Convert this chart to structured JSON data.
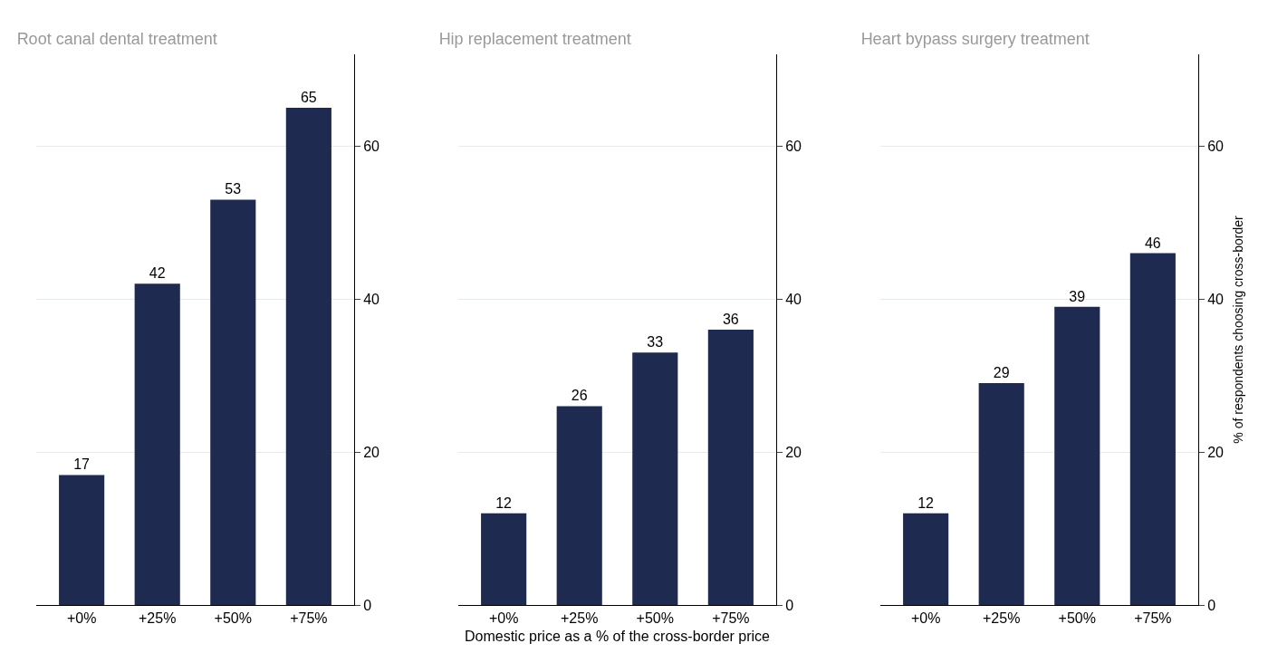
{
  "chart_data": [
    {
      "type": "bar",
      "title": "Root canal dental treatment",
      "categories": [
        "+0%",
        "+25%",
        "+50%",
        "+75%"
      ],
      "values": [
        17,
        42,
        53,
        65
      ],
      "color": "#1f2a50",
      "ylim": [
        0,
        72
      ],
      "yticks": [
        0,
        20,
        40,
        60
      ],
      "grid": "y",
      "data_labels": true
    },
    {
      "type": "bar",
      "title": "Hip replacement treatment",
      "xlabel": "Domestic price as a % of the cross-border price",
      "categories": [
        "+0%",
        "+25%",
        "+50%",
        "+75%"
      ],
      "values": [
        12,
        26,
        33,
        36
      ],
      "color": "#1f2a50",
      "ylim": [
        0,
        72
      ],
      "yticks": [
        0,
        20,
        40,
        60
      ],
      "grid": "y",
      "data_labels": true
    },
    {
      "type": "bar",
      "title": "Heart bypass surgery treatment",
      "ylabel": "% of respondents choosing cross-border",
      "categories": [
        "+0%",
        "+25%",
        "+50%",
        "+75%"
      ],
      "values": [
        12,
        29,
        39,
        46
      ],
      "color": "#1f2a50",
      "ylim": [
        0,
        72
      ],
      "yticks": [
        0,
        20,
        40,
        60
      ],
      "grid": "y",
      "data_labels": true
    }
  ]
}
